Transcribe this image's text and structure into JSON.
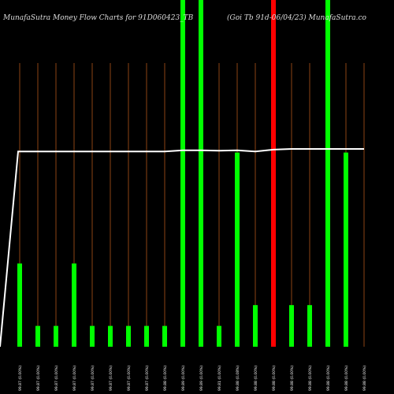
{
  "header": {
    "left": "MunafaSutra  Money Flow  Charts for 91D060423_TB",
    "right": "(Goi   Tb   91d-06/04/23) MunafaSutra.co"
  },
  "colors": {
    "background": "#000000",
    "up_bar": "#00ff00",
    "down_bar": "#ff0000",
    "grid_line": "#8b4513",
    "price_line": "#ffffff",
    "label_text": "#ffffff"
  },
  "chart_data": {
    "type": "bar",
    "categories": [
      "99.87 (0.00%)",
      "99.87 (0.00%)",
      "99.87 (0.00%)",
      "99.87 (0.00%)",
      "99.87 (0.00%)",
      "99.87 (0.00%)",
      "99.87 (0.00%)",
      "99.87 (0.00%)",
      "99.88 (0.00%)",
      "99.89 (0.00%)",
      "99.89 (0.00%)",
      "99.81 (0.00%)",
      "99.88 (0.08%)",
      "99.88 (0.00%)",
      "99.88 (0.00%)",
      "99.88 (0.00%)",
      "99.88 (0.00%)",
      "99.88 (0.00%)",
      "99.88 (0.00%)",
      "99.88 (0.00%)"
    ],
    "series": [
      {
        "values": [
          24,
          6,
          6,
          24,
          6,
          6,
          6,
          6,
          6,
          100,
          100,
          6,
          56,
          12,
          100,
          12,
          12,
          100,
          56,
          0
        ],
        "colors": [
          "green",
          "green",
          "green",
          "green",
          "green",
          "green",
          "green",
          "green",
          "green",
          "green",
          "green",
          "green",
          "green",
          "green",
          "red",
          "green",
          "green",
          "green",
          "green",
          "green"
        ]
      },
      {
        "values": [
          45.7,
          99.9,
          99.9,
          99.9,
          99.9,
          99.9,
          99.9,
          99.9,
          99.9,
          100.2,
          100.2,
          100.1,
          100.2,
          99.9,
          100.4,
          100.6,
          100.6,
          100.6,
          100.6,
          100.6
        ]
      }
    ],
    "ylim": [
      0,
      100
    ],
    "grid": true
  }
}
